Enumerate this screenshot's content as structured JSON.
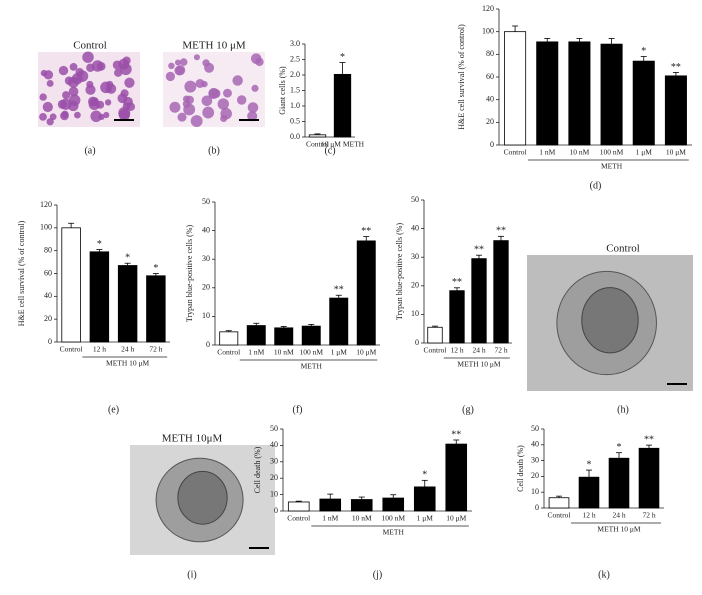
{
  "chart_data": [
    {
      "type": "bar",
      "label": "(c)",
      "ylabel": "Giant cells (%)",
      "categories": [
        "Control",
        "10 μM METH"
      ],
      "values": [
        0.07,
        2.02
      ],
      "errors": [
        0.03,
        0.38
      ],
      "sig": [
        null,
        "*"
      ],
      "colors": [
        "#ffffff",
        "#000000"
      ],
      "ylim": [
        0,
        3
      ],
      "yticks": [
        {
          "value": 0,
          "label": "0.0"
        },
        0.5,
        {
          "value": 1,
          "label": "1.0"
        },
        1.5,
        {
          "value": 2,
          "label": "2.0"
        },
        2.5,
        {
          "value": 3,
          "label": "3.0"
        }
      ]
    },
    {
      "type": "bar",
      "label": "(d)",
      "ylabel": "H&E cell survival (% of control)",
      "group_label": "METH",
      "categories": [
        "Control",
        "1 nM",
        "10 nM",
        "100 nM",
        "1 μM",
        "10 μM"
      ],
      "values": [
        100,
        91,
        91,
        89,
        74,
        61
      ],
      "errors": [
        5,
        3,
        3,
        5,
        4,
        3
      ],
      "sig": [
        null,
        null,
        null,
        null,
        "*",
        "**"
      ],
      "colors": [
        "#ffffff",
        "#000000",
        "#000000",
        "#000000",
        "#000000",
        "#000000"
      ],
      "ylim": [
        0,
        120
      ],
      "yticks": [
        0,
        20,
        40,
        60,
        80,
        100,
        120
      ]
    },
    {
      "type": "bar",
      "label": "(e)",
      "ylabel": "H&E cell survival (% of control)",
      "group_label": "METH 10 μM",
      "categories": [
        "Control",
        "12 h",
        "24 h",
        "72 h"
      ],
      "values": [
        100,
        79,
        67,
        58
      ],
      "errors": [
        4,
        2,
        2,
        2
      ],
      "sig": [
        null,
        "*",
        "*",
        "*"
      ],
      "colors": [
        "#ffffff",
        "#000000",
        "#000000",
        "#000000"
      ],
      "ylim": [
        0,
        120
      ],
      "yticks": [
        0,
        20,
        40,
        60,
        80,
        100,
        120
      ]
    },
    {
      "type": "bar",
      "label": "(f)",
      "ylabel": "Trypan blue-positive cells (%)",
      "group_label": "METH",
      "categories": [
        "Control",
        "1 nM",
        "10 nM",
        "100 nM",
        "1 μM",
        "10 μM"
      ],
      "values": [
        4.6,
        6.8,
        6,
        6.6,
        16.4,
        36.4
      ],
      "errors": [
        0.4,
        0.8,
        0.5,
        0.6,
        1,
        1.5
      ],
      "sig": [
        null,
        null,
        null,
        null,
        "**",
        "**"
      ],
      "colors": [
        "#ffffff",
        "#000000",
        "#000000",
        "#000000",
        "#000000",
        "#000000"
      ],
      "ylim": [
        0,
        50
      ],
      "yticks": [
        0,
        10,
        20,
        30,
        40,
        50
      ]
    },
    {
      "type": "bar",
      "label": "(g)",
      "ylabel": "Trypan blue-positive cells (%)",
      "group_label": "METH 10 μM",
      "categories": [
        "Control",
        "12 h",
        "24 h",
        "72 h"
      ],
      "values": [
        5.5,
        18.3,
        29.5,
        35.8
      ],
      "errors": [
        0.4,
        1,
        1.2,
        1.5
      ],
      "sig": [
        null,
        "**",
        "**",
        "**"
      ],
      "colors": [
        "#ffffff",
        "#000000",
        "#000000",
        "#000000"
      ],
      "ylim": [
        0,
        50
      ],
      "yticks": [
        0,
        10,
        20,
        30,
        40,
        50
      ]
    },
    {
      "type": "bar",
      "label": "(j)",
      "ylabel": "Cell death (%)",
      "group_label": "METH",
      "categories": [
        "Control",
        "1 nM",
        "10 nM",
        "100 nM",
        "1 μM",
        "10 μM"
      ],
      "values": [
        5.5,
        7.3,
        7,
        7.9,
        14.7,
        40.8
      ],
      "errors": [
        0.5,
        3,
        1.5,
        2,
        4,
        2.5
      ],
      "sig": [
        null,
        null,
        null,
        null,
        "*",
        "**"
      ],
      "colors": [
        "#ffffff",
        "#000000",
        "#000000",
        "#000000",
        "#000000",
        "#000000"
      ],
      "ylim": [
        0,
        50
      ],
      "yticks": [
        0,
        10,
        20,
        30,
        40,
        50
      ]
    },
    {
      "type": "bar",
      "label": "(k)",
      "ylabel": "Cell death (%)",
      "group_label": "METH 10 μM",
      "categories": [
        "Control",
        "12 h",
        "24 h",
        "72 h"
      ],
      "values": [
        6.5,
        19.5,
        31.5,
        37.8
      ],
      "errors": [
        1,
        4.5,
        3.5,
        2
      ],
      "sig": [
        null,
        "*",
        "*",
        "**"
      ],
      "colors": [
        "#ffffff",
        "#000000",
        "#000000",
        "#000000"
      ],
      "ylim": [
        0,
        50
      ],
      "yticks": [
        0,
        10,
        20,
        30,
        40,
        50
      ]
    }
  ],
  "images": [
    {
      "title": "Control",
      "label": "(a)"
    },
    {
      "title": "METH 10 μM",
      "label": "(b)"
    },
    {
      "title": "Control",
      "label": "(h)"
    },
    {
      "title": "METH 10μM",
      "label": "(i)"
    }
  ]
}
